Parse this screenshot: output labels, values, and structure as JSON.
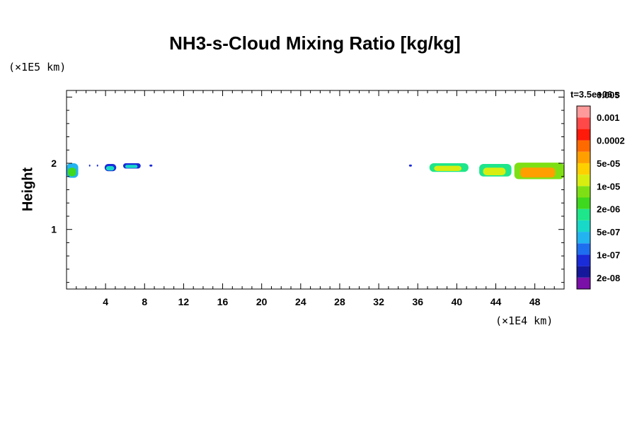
{
  "chart_data": {
    "type": "heatmap",
    "title": "NH3-s-Cloud Mixing Ratio [kg/kg]",
    "ylabel": "Height",
    "xlabel": "",
    "x_unit": "(×1E4 km)",
    "y_unit": "(×1E5 km)",
    "time_label": "t=3.5e+06 s",
    "xlim": [
      0,
      51
    ],
    "ylim": [
      0.1,
      3.1
    ],
    "x_ticks": [
      "4",
      "8",
      "12",
      "16",
      "20",
      "24",
      "28",
      "32",
      "36",
      "40",
      "44",
      "48"
    ],
    "y_ticks": [
      "1",
      "2"
    ],
    "colorbar": {
      "levels": [
        "2e-08",
        "1e-07",
        "5e-07",
        "2e-06",
        "1e-05",
        "5e-05",
        "0.0002",
        "0.001",
        "0.005"
      ],
      "colors": [
        "#7a10a8",
        "#15189a",
        "#1a2bd8",
        "#1e6ef0",
        "#22b4f0",
        "#18d8c8",
        "#1ee68a",
        "#3ed81e",
        "#7ee014",
        "#d8ee10",
        "#ffd000",
        "#ffa000",
        "#ff6a00",
        "#ff1a0a",
        "#ff4848",
        "#ff9a9a"
      ]
    },
    "cloud_regions": [
      {
        "x_start": 0.0,
        "x_end": 1.2,
        "y_bottom": 1.78,
        "y_top": 2.0,
        "level": "5e-07"
      },
      {
        "x_start": 2.3,
        "x_end": 2.4,
        "y_bottom": 1.95,
        "y_top": 1.98,
        "level": "1e-07"
      },
      {
        "x_start": 3.1,
        "x_end": 3.2,
        "y_bottom": 1.95,
        "y_top": 1.98,
        "level": "1e-07"
      },
      {
        "x_start": 3.9,
        "x_end": 5.1,
        "y_bottom": 1.88,
        "y_top": 1.99,
        "level": "1e-07"
      },
      {
        "x_start": 5.8,
        "x_end": 7.6,
        "y_bottom": 1.92,
        "y_top": 2.0,
        "level": "1e-07"
      },
      {
        "x_start": 8.5,
        "x_end": 8.8,
        "y_bottom": 1.95,
        "y_top": 1.98,
        "level": "1e-07"
      },
      {
        "x_start": 35.1,
        "x_end": 35.4,
        "y_bottom": 1.95,
        "y_top": 1.98,
        "level": "1e-07"
      },
      {
        "x_start": 37.2,
        "x_end": 41.2,
        "y_bottom": 1.87,
        "y_top": 2.0,
        "level": "2e-06"
      },
      {
        "x_start": 42.3,
        "x_end": 45.6,
        "y_bottom": 1.8,
        "y_top": 1.99,
        "level": "2e-06"
      },
      {
        "x_start": 45.9,
        "x_end": 51.0,
        "y_bottom": 1.76,
        "y_top": 2.01,
        "level": "1e-05"
      }
    ]
  }
}
